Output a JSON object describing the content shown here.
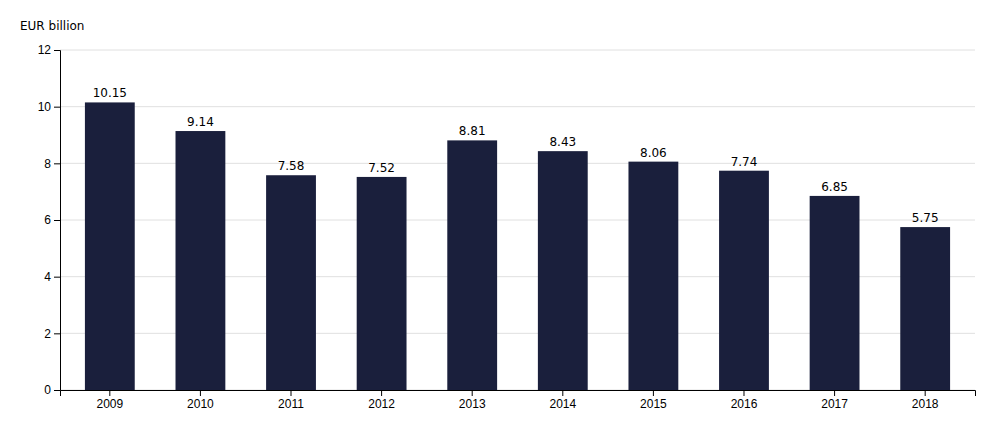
{
  "chart_data": {
    "type": "bar",
    "ylabel": "EUR billion",
    "categories": [
      "2009",
      "2010",
      "2011",
      "2012",
      "2013",
      "2014",
      "2015",
      "2016",
      "2017",
      "2018"
    ],
    "values": [
      10.15,
      9.14,
      7.58,
      7.52,
      8.81,
      8.43,
      8.06,
      7.74,
      6.85,
      5.75
    ],
    "color": "#1a1f3c",
    "ylim": [
      0,
      12
    ],
    "yticks": [
      0,
      2,
      4,
      6,
      8,
      10,
      12
    ],
    "grid": true,
    "data_labels": true
  }
}
